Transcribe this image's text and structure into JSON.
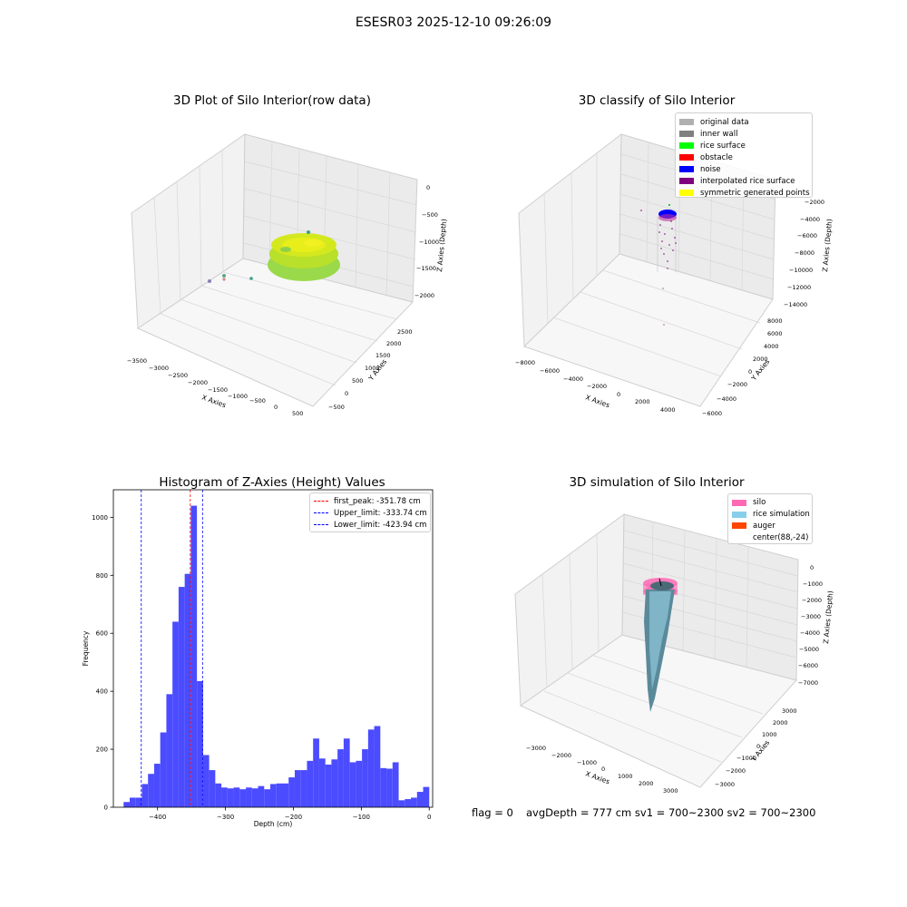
{
  "suptitle": "ESESR03 2025-12-10 09:26:09",
  "colors": {
    "hist_bar": "#4b4bff",
    "first_peak": "#ff0000",
    "limits": "#0000ff",
    "silo": "#ff69b4",
    "rice_sim": "#87ceeb",
    "auger": "#ff4500"
  },
  "panel1": {
    "title": "3D Plot of Silo Interior(row data)",
    "xlabel": "X Axies",
    "ylabel": "Y Axies",
    "zlabel": "Z Axies (Depth)",
    "xticks": [
      "−3500",
      "−3000",
      "−2500",
      "−2000",
      "−1500",
      "−1000",
      "−500",
      "0",
      "500"
    ],
    "yticks": [
      "−500",
      "0",
      "500",
      "1000",
      "1500",
      "2000",
      "2500"
    ],
    "zticks": [
      "0",
      "−500",
      "−1000",
      "−1500",
      "−2000"
    ]
  },
  "panel2": {
    "title": "3D classify of Silo Interior",
    "xlabel": "X Axies",
    "ylabel": "Y Axies",
    "zlabel": "Z Axies (Depth)",
    "xticks": [
      "−8000",
      "−6000",
      "−4000",
      "−2000",
      "0",
      "2000",
      "4000"
    ],
    "yticks": [
      "−6000",
      "−4000",
      "−2000",
      "0",
      "2000",
      "4000",
      "6000",
      "8000"
    ],
    "zticks": [
      "−2000",
      "−4000",
      "−6000",
      "−8000",
      "−10000",
      "−12000",
      "−14000"
    ],
    "legend": [
      {
        "label": "original data",
        "color": "#b0b0b0"
      },
      {
        "label": "inner wall",
        "color": "#808080"
      },
      {
        "label": "rice surface",
        "color": "#00ff00"
      },
      {
        "label": "obstacle",
        "color": "#ff0000"
      },
      {
        "label": "noise",
        "color": "#0000ff"
      },
      {
        "label": "interpolated rice surface",
        "color": "#800080"
      },
      {
        "label": "symmetric generated points",
        "color": "#ffff00"
      }
    ]
  },
  "panel3": {
    "title": "Histogram of Z-Axies (Height) Values",
    "legend": [
      {
        "label": "first_peak: -351.78 cm",
        "color": "#ff0000"
      },
      {
        "label": "Upper_limit: -333.74 cm",
        "color": "#0000ff"
      },
      {
        "label": "Lower_limit: -423.94 cm",
        "color": "#0000ff"
      }
    ]
  },
  "panel4": {
    "title": "3D simulation of Silo Interior",
    "xlabel": "X Axies",
    "ylabel": "Y Axies",
    "zlabel": "Z Axies (Depth)",
    "xticks": [
      "−3000",
      "−2000",
      "−1000",
      "0",
      "1000",
      "2000",
      "3000"
    ],
    "yticks": [
      "−3000",
      "−2000",
      "−1000",
      "0",
      "1000",
      "2000",
      "3000"
    ],
    "zticks": [
      "0",
      "−1000",
      "−2000",
      "−3000",
      "−4000",
      "−5000",
      "−6000",
      "−7000"
    ],
    "legend": [
      {
        "label": "silo",
        "color": "#ff69b4"
      },
      {
        "label": "rice simulation",
        "color": "#87ceeb"
      },
      {
        "label": "auger",
        "color": "#ff4500"
      },
      {
        "label": "center(88,-24)",
        "color": ""
      }
    ]
  },
  "footer": {
    "flag": "flag = 0",
    "stats": "avgDepth = 777 cm  sv1 = 700~2300  sv2 = 700~2300"
  },
  "chart_data": {
    "type": "bar",
    "title": "Histogram of Z-Axies (Height) Values",
    "xlabel": "Depth (cm)",
    "ylabel": "Frequency",
    "xlim": [
      -465,
      5
    ],
    "ylim": [
      0,
      1095
    ],
    "xticks": [
      -400,
      -300,
      -200,
      -100,
      0
    ],
    "yticks": [
      0,
      200,
      400,
      600,
      800,
      1000
    ],
    "bin_width": 9,
    "bin_start": -450,
    "values": [
      18,
      33,
      33,
      80,
      115,
      150,
      258,
      390,
      640,
      760,
      805,
      1040,
      435,
      180,
      128,
      82,
      68,
      65,
      68,
      62,
      68,
      65,
      73,
      62,
      80,
      82,
      82,
      103,
      128,
      128,
      160,
      237,
      168,
      147,
      165,
      200,
      237,
      155,
      160,
      200,
      268,
      280,
      135,
      133,
      155,
      24,
      28,
      33,
      53,
      70
    ],
    "vlines": [
      {
        "name": "first_peak",
        "x": -351.78,
        "color": "#ff0000"
      },
      {
        "name": "Upper_limit",
        "x": -333.74,
        "color": "#0000ff"
      },
      {
        "name": "Lower_limit",
        "x": -423.94,
        "color": "#0000ff"
      }
    ],
    "legend_position": "top-right",
    "grid": false
  }
}
